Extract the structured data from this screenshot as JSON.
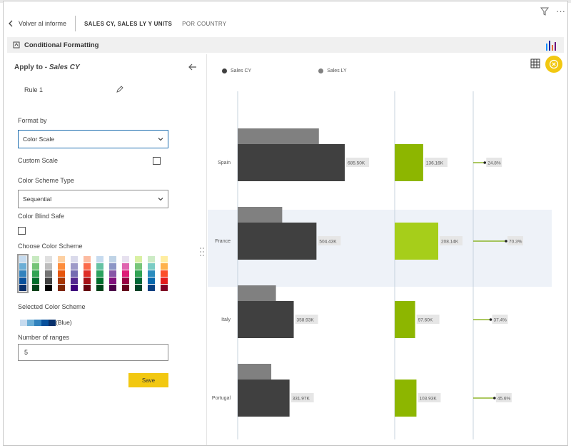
{
  "header": {
    "back_label": "Volver al informe",
    "tab_active": "SALES CY, SALES LY Y UNITS",
    "tab_other": "POR COUNTRY"
  },
  "cf_bar": {
    "title": "Conditional Formatting"
  },
  "panel": {
    "apply_prefix": "Apply to - ",
    "apply_target": "Sales CY",
    "rule_label": "Rule 1",
    "format_by_label": "Format by",
    "format_by_value": "Color Scale",
    "custom_scale_label": "Custom Scale",
    "scheme_type_label": "Color Scheme Type",
    "scheme_type_value": "Sequential",
    "color_blind_label": "Color Blind Safe",
    "choose_scheme_label": "Choose Color Scheme",
    "selected_scheme_label": "Selected Color Scheme",
    "selected_scheme_name": "(Blue)",
    "ranges_label": "Number of ranges",
    "ranges_value": "5",
    "save_label": "Save"
  },
  "schemes": [
    [
      "#c6dbef",
      "#6baed6",
      "#3182bd",
      "#08519c",
      "#08306b"
    ],
    [
      "#c7e9c0",
      "#74c476",
      "#31a354",
      "#006d2c",
      "#00441b"
    ],
    [
      "#e0e0e0",
      "#bdbdbd",
      "#737373",
      "#404040",
      "#000000"
    ],
    [
      "#fdd0a2",
      "#fd8d3c",
      "#e6550d",
      "#a63603",
      "#7f2704"
    ],
    [
      "#dadaeb",
      "#9e9ac8",
      "#756bb1",
      "#54278f",
      "#3f007d"
    ],
    [
      "#fcbba1",
      "#fb6a4a",
      "#de2d26",
      "#a50f15",
      "#67000d"
    ],
    [
      "#c6dbef",
      "#66c2a4",
      "#2ca25f",
      "#006d2c",
      "#00441b"
    ],
    [
      "#bfd3e6",
      "#8c96c6",
      "#8856a7",
      "#810f7c",
      "#4d004b"
    ],
    [
      "#e7e1ef",
      "#df65b0",
      "#dd1c77",
      "#980043",
      "#67001f"
    ],
    [
      "#d9f0a3",
      "#78c679",
      "#31a354",
      "#006837",
      "#004529"
    ],
    [
      "#ccebc5",
      "#7bccc4",
      "#2b8cbe",
      "#0868ac",
      "#084081"
    ],
    [
      "#ffeda0",
      "#feb24c",
      "#fc4e2a",
      "#e31a1c",
      "#800026"
    ]
  ],
  "colors": {
    "accent": "#f2c811",
    "sales_cy": "#404040",
    "sales_ly": "#808080",
    "units_dark": "#8db600",
    "units_light": "#a6ce1a",
    "highlight_row": "#eef2f8"
  },
  "chart_data": {
    "type": "bar",
    "legend": [
      "Sales CY",
      "Sales LY"
    ],
    "categories": [
      "Spain",
      "France",
      "Italy",
      "Portugal"
    ],
    "series": [
      {
        "name": "Sales CY",
        "values": [
          685.5,
          504.43,
          358.93,
          331.97
        ],
        "labels": [
          "685.50K",
          "504.43K",
          "358.93K",
          "331.97K"
        ]
      },
      {
        "name": "Sales LY",
        "values": [
          520,
          285,
          245,
          215
        ]
      }
    ],
    "units": {
      "values": [
        136.16,
        208.14,
        97.6,
        103.93
      ],
      "labels": [
        "136.16K",
        "208.14K",
        "97.60K",
        "103.93K"
      ]
    },
    "pct": {
      "values": [
        24.8,
        70.3,
        37.4,
        45.6
      ],
      "labels": [
        "24.8%",
        "70.3%",
        "37.4%",
        "45.6%"
      ]
    },
    "highlighted": "France"
  }
}
